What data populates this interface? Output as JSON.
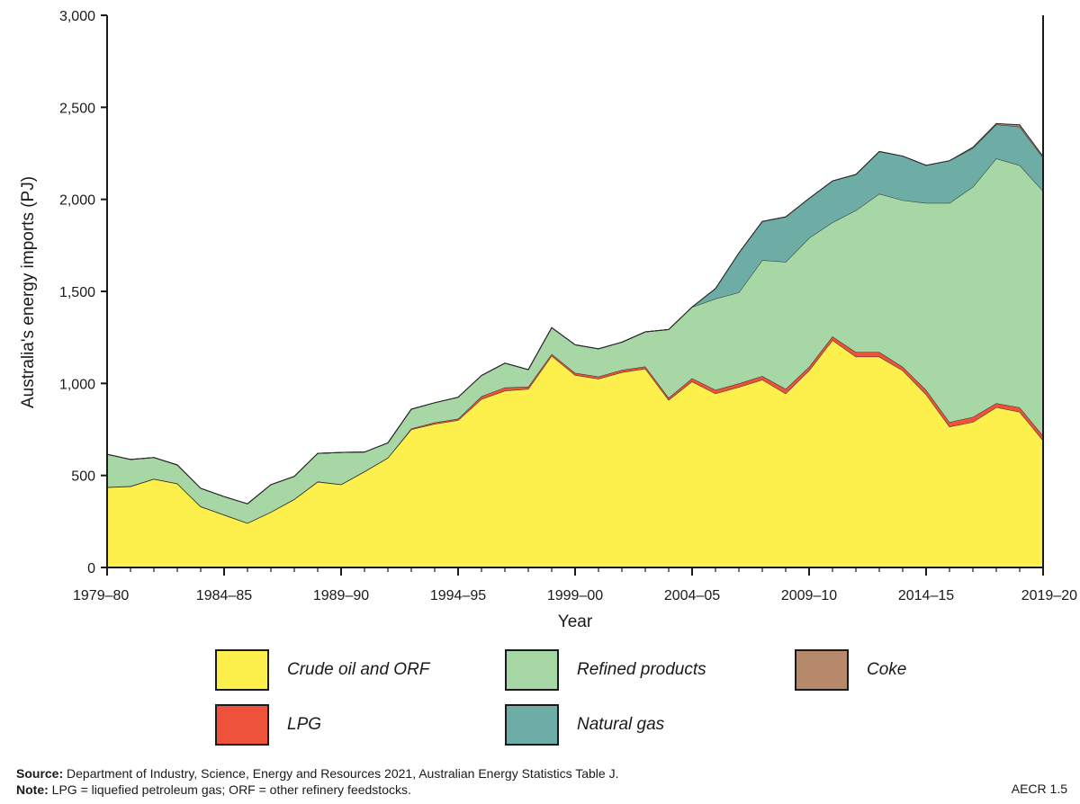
{
  "chart_data": {
    "type": "area",
    "stacked": true,
    "xlabel": "Year",
    "ylabel": "Australia's energy imports (PJ)",
    "ylim": [
      0,
      3000
    ],
    "yticks": [
      0,
      500,
      1000,
      1500,
      2000,
      2500,
      3000
    ],
    "ytick_labels": [
      "0",
      "500",
      "1,000",
      "1,500",
      "2,000",
      "2,500",
      "3,000"
    ],
    "x": [
      "1979–80",
      "1980–81",
      "1981–82",
      "1982–83",
      "1983–84",
      "1984–85",
      "1985–86",
      "1986–87",
      "1987–88",
      "1988–89",
      "1989–90",
      "1990–91",
      "1991–92",
      "1992–93",
      "1993–94",
      "1994–95",
      "1995–96",
      "1996–97",
      "1997–98",
      "1998–99",
      "1999–00",
      "2000–01",
      "2001–02",
      "2002–03",
      "2003–04",
      "2004–05",
      "2005–06",
      "2006–07",
      "2007–08",
      "2008–09",
      "2009–10",
      "2010–11",
      "2011–12",
      "2012–13",
      "2013–14",
      "2014–15",
      "2015–16",
      "2016–17",
      "2017–18",
      "2018–19",
      "2019–20"
    ],
    "xtick_labels": [
      "1979–80",
      "1984–85",
      "1989–90",
      "1994–95",
      "1999–00",
      "2004–05",
      "2009–10",
      "2014–15",
      "2019–20"
    ],
    "series": [
      {
        "name": "Crude oil and ORF",
        "color": "#fdf04c",
        "values": [
          435,
          440,
          480,
          455,
          330,
          285,
          240,
          300,
          370,
          465,
          450,
          520,
          595,
          750,
          780,
          800,
          915,
          960,
          970,
          1150,
          1045,
          1025,
          1060,
          1080,
          910,
          1010,
          945,
          980,
          1020,
          945,
          1070,
          1235,
          1145,
          1145,
          1070,
          940,
          765,
          790,
          870,
          845,
          690
        ]
      },
      {
        "name": "LPG",
        "color": "#ef523a",
        "values": [
          2,
          2,
          2,
          2,
          2,
          2,
          2,
          2,
          2,
          2,
          2,
          2,
          2,
          5,
          8,
          8,
          15,
          18,
          12,
          10,
          12,
          12,
          13,
          12,
          12,
          18,
          20,
          20,
          20,
          25,
          20,
          20,
          25,
          25,
          20,
          25,
          25,
          28,
          22,
          25,
          25
        ]
      },
      {
        "name": "Refined products",
        "color": "#a8d7a6",
        "values": [
          178,
          145,
          115,
          100,
          98,
          98,
          104,
          148,
          123,
          153,
          173,
          105,
          80,
          105,
          107,
          117,
          113,
          132,
          93,
          143,
          153,
          151,
          151,
          188,
          371,
          387,
          495,
          494,
          630,
          690,
          700,
          620,
          770,
          860,
          905,
          1015,
          1190,
          1250,
          1330,
          1315,
          1330
        ]
      },
      {
        "name": "Natural gas",
        "color": "#6dada6",
        "values": [
          0,
          0,
          0,
          0,
          0,
          0,
          0,
          0,
          0,
          0,
          0,
          0,
          0,
          0,
          0,
          0,
          0,
          0,
          0,
          0,
          0,
          0,
          0,
          0,
          0,
          0,
          55,
          215,
          210,
          245,
          215,
          225,
          195,
          230,
          240,
          205,
          230,
          210,
          185,
          210,
          180
        ]
      },
      {
        "name": "Coke",
        "color": "#b7896b",
        "values": [
          0,
          0,
          0,
          0,
          0,
          0,
          0,
          0,
          0,
          0,
          0,
          0,
          0,
          0,
          0,
          0,
          0,
          0,
          0,
          0,
          0,
          0,
          0,
          0,
          0,
          0,
          0,
          0,
          0,
          0,
          0,
          0,
          0,
          0,
          0,
          0,
          0,
          5,
          5,
          10,
          8
        ]
      }
    ],
    "legend": [
      {
        "name": "Crude oil and ORF",
        "color": "#fdf04c"
      },
      {
        "name": "Refined products",
        "color": "#a8d7a6"
      },
      {
        "name": "Coke",
        "color": "#b7896b"
      },
      {
        "name": "LPG",
        "color": "#ef523a"
      },
      {
        "name": "Natural gas",
        "color": "#6dada6"
      }
    ],
    "legend_placement": "bottom",
    "grid": false
  },
  "footer": {
    "source_label": "Source:",
    "source_text": " Department of Industry, Science, Energy and Resources 2021, Australian Energy Statistics Table J.",
    "note_label": "Note:",
    "note_text": " LPG = liquefied petroleum gas; ORF = other refinery feedstocks.",
    "figure_id": "AECR 1.5"
  }
}
